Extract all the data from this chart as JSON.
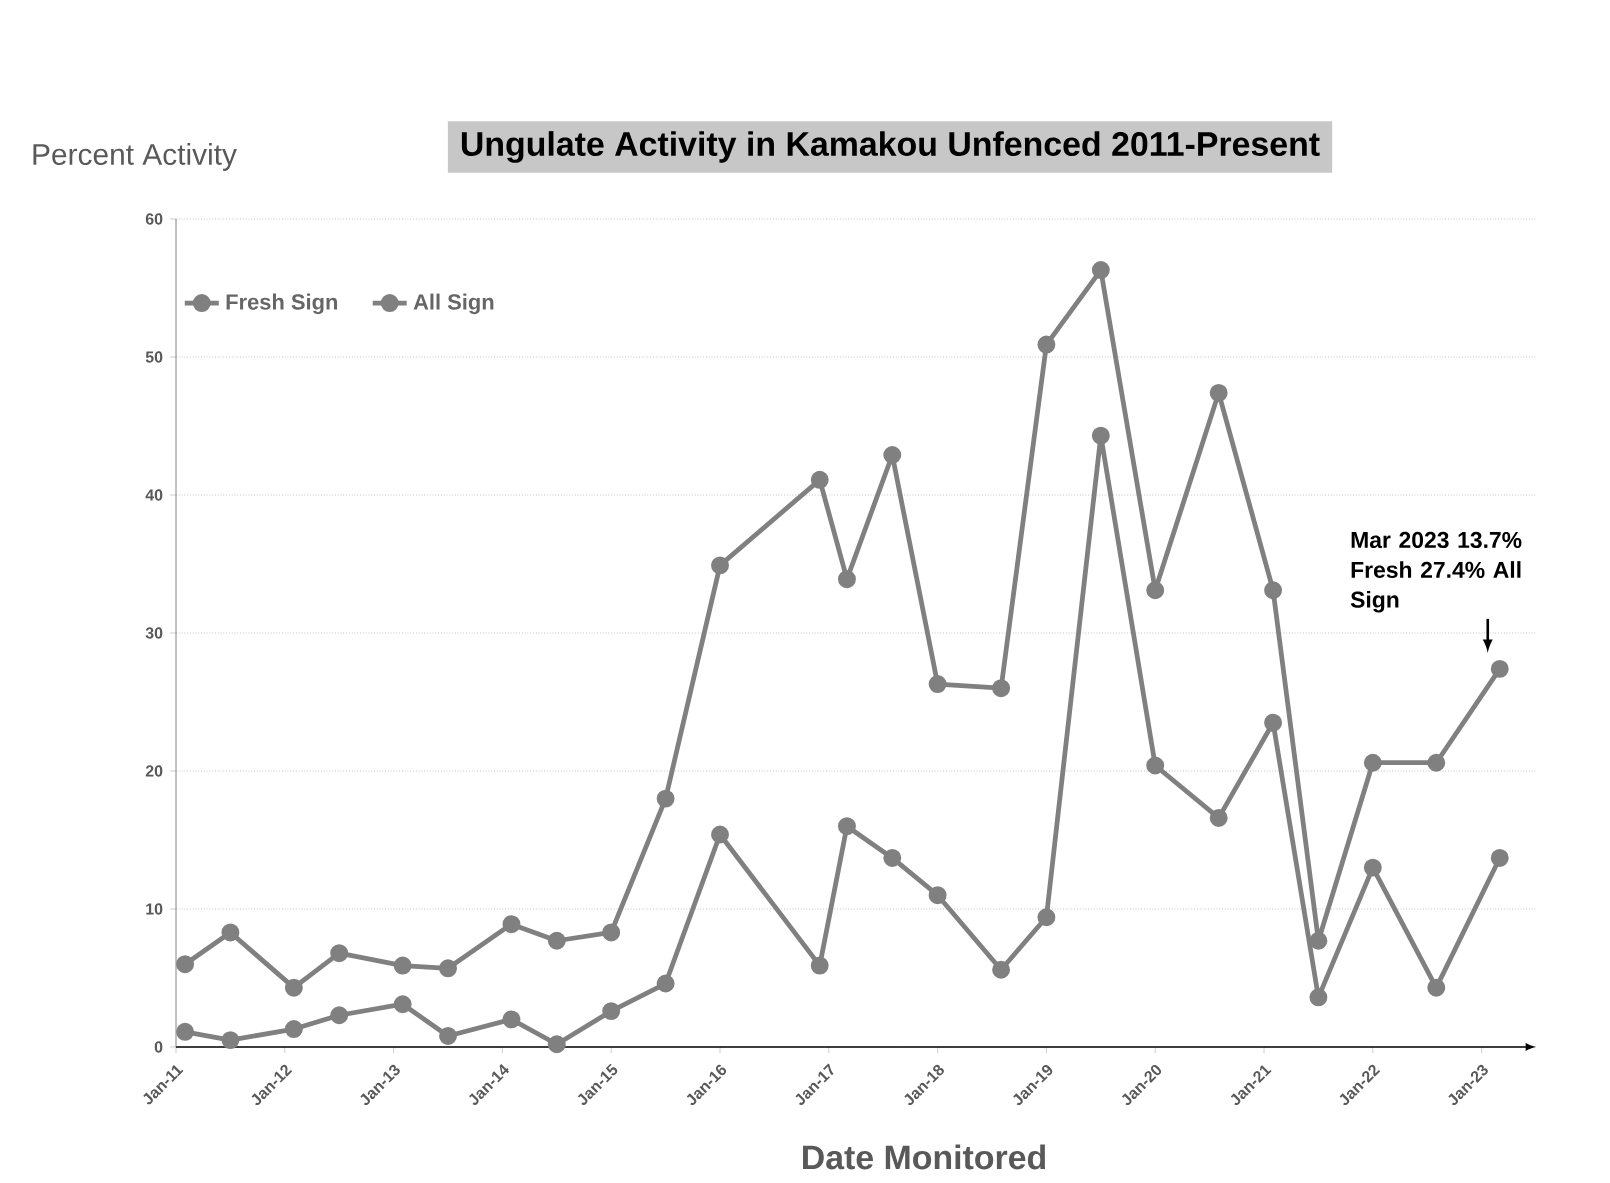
{
  "chart_data": {
    "type": "line",
    "title": "Ungulate Activity in Kamakou Unfenced 2011-Present",
    "xlabel": "Date Monitored",
    "ylabel": "Percent Activity",
    "x": [
      "2011-02",
      "2011-07",
      "2012-02",
      "2012-07",
      "2013-02",
      "2013-07",
      "2014-02",
      "2014-07",
      "2015-01",
      "2015-07",
      "2016-01",
      "2016-12",
      "2017-03",
      "2017-08",
      "2018-01",
      "2018-08",
      "2019-01",
      "2019-07",
      "2020-01",
      "2020-08",
      "2021-02",
      "2021-07",
      "2022-01",
      "2022-08",
      "2023-03"
    ],
    "series": [
      {
        "name": "Fresh Sign",
        "color": "#808080",
        "values": [
          1.1,
          0.5,
          1.3,
          2.3,
          3.1,
          0.8,
          2.0,
          0.2,
          2.6,
          4.6,
          15.4,
          5.9,
          16.0,
          13.7,
          11.0,
          5.6,
          9.4,
          44.3,
          20.4,
          16.6,
          23.5,
          3.6,
          13.0,
          4.3,
          13.7
        ]
      },
      {
        "name": "All Sign",
        "color": "#808080",
        "values": [
          6.0,
          8.3,
          4.3,
          6.8,
          5.9,
          5.7,
          8.9,
          7.7,
          8.3,
          18.0,
          34.9,
          41.1,
          33.9,
          42.9,
          26.3,
          26.0,
          50.9,
          56.3,
          33.1,
          47.4,
          33.1,
          7.7,
          20.6,
          20.6,
          27.4
        ]
      }
    ],
    "xlim": [
      "2011-01",
      "2023-07"
    ],
    "ylim": [
      0,
      60
    ],
    "xticks": [
      {
        "value": "2011-01",
        "label": "Jan-11"
      },
      {
        "value": "2012-01",
        "label": "Jan-12"
      },
      {
        "value": "2013-01",
        "label": "Jan-13"
      },
      {
        "value": "2014-01",
        "label": "Jan-14"
      },
      {
        "value": "2015-01",
        "label": "Jan-15"
      },
      {
        "value": "2016-01",
        "label": "Jan-16"
      },
      {
        "value": "2017-01",
        "label": "Jan-17"
      },
      {
        "value": "2018-01",
        "label": "Jan-18"
      },
      {
        "value": "2019-01",
        "label": "Jan-19"
      },
      {
        "value": "2020-01",
        "label": "Jan-20"
      },
      {
        "value": "2021-01",
        "label": "Jan-21"
      },
      {
        "value": "2022-01",
        "label": "Jan-22"
      },
      {
        "value": "2023-01",
        "label": "Jan-23"
      }
    ],
    "yticks": [
      0,
      10,
      20,
      30,
      40,
      50,
      60
    ],
    "grid": "y",
    "legend": "top left",
    "marker": "circle",
    "line_style": "solid",
    "annotations": [
      {
        "text": "Mar 2023 13.7% Fresh 27.4% All Sign",
        "x": "2023-03",
        "y": 27.4
      }
    ]
  }
}
